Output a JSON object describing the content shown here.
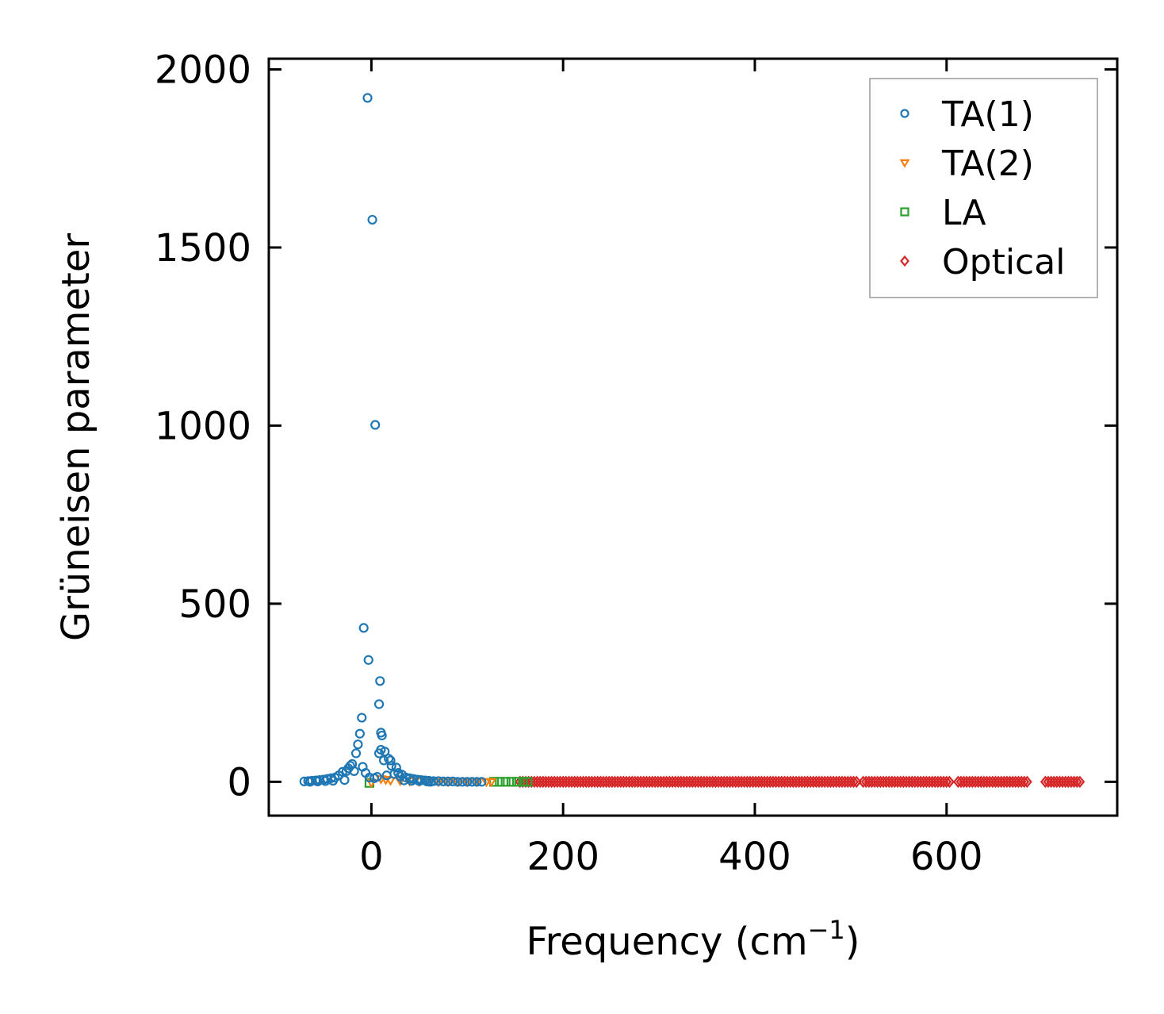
{
  "chart_data": {
    "type": "scatter",
    "xlabel": "Frequency (cm",
    "xlabel_sup": "−1",
    "xlabel_close": ")",
    "ylabel": "Grüneisen parameter",
    "xlim": [
      -107,
      778
    ],
    "ylim": [
      -95,
      2030
    ],
    "xticks": [
      0,
      200,
      400,
      600
    ],
    "yticks": [
      0,
      500,
      1000,
      1500,
      2000
    ],
    "grid": false,
    "legend_position": "top-right",
    "series": [
      {
        "name": "TA(1)",
        "marker": "circle",
        "color": "#1f77b4",
        "points": [
          [
            -4,
            1920
          ],
          [
            1,
            1578
          ],
          [
            4,
            1002
          ],
          [
            -8,
            432
          ],
          [
            -3,
            342
          ],
          [
            9,
            283
          ],
          [
            8,
            218
          ],
          [
            -10,
            180
          ],
          [
            -12,
            135
          ],
          [
            10,
            138
          ],
          [
            11,
            130
          ],
          [
            -14,
            105
          ],
          [
            10,
            90
          ],
          [
            14,
            85
          ],
          [
            -16,
            80
          ],
          [
            8,
            80
          ],
          [
            13,
            60
          ],
          [
            18,
            65
          ],
          [
            20,
            60
          ],
          [
            -20,
            50
          ],
          [
            -22,
            45
          ],
          [
            -24,
            38
          ],
          [
            21,
            45
          ],
          [
            26,
            40
          ],
          [
            -26,
            30
          ],
          [
            -30,
            28
          ],
          [
            28,
            25
          ],
          [
            32,
            20
          ],
          [
            -18,
            30
          ],
          [
            -9,
            42
          ],
          [
            -6,
            25
          ],
          [
            16,
            18
          ],
          [
            24,
            22
          ],
          [
            30,
            15
          ],
          [
            -34,
            18
          ],
          [
            -38,
            12
          ],
          [
            36,
            12
          ],
          [
            40,
            10
          ],
          [
            44,
            8
          ],
          [
            -42,
            10
          ],
          [
            -46,
            8
          ],
          [
            -50,
            6
          ],
          [
            48,
            6
          ],
          [
            52,
            5
          ],
          [
            -54,
            5
          ],
          [
            -58,
            4
          ],
          [
            -62,
            3
          ],
          [
            -66,
            2
          ],
          [
            -70,
            1
          ],
          [
            56,
            4
          ],
          [
            60,
            3
          ],
          [
            65,
            2
          ],
          [
            70,
            2
          ],
          [
            75,
            1
          ],
          [
            80,
            1
          ],
          [
            85,
            1
          ],
          [
            90,
            0
          ],
          [
            95,
            0
          ],
          [
            100,
            0
          ],
          [
            105,
            0
          ],
          [
            110,
            0
          ],
          [
            115,
            0
          ],
          [
            -2,
            12
          ],
          [
            3,
            10
          ],
          [
            6,
            14
          ],
          [
            -28,
            5
          ],
          [
            34,
            4
          ],
          [
            -40,
            3
          ],
          [
            42,
            3
          ],
          [
            -48,
            2
          ],
          [
            50,
            2
          ],
          [
            -56,
            1
          ],
          [
            58,
            1
          ],
          [
            -64,
            0
          ],
          [
            62,
            0
          ]
        ]
      },
      {
        "name": "TA(2)",
        "marker": "triangle-down",
        "color": "#ff7f0e",
        "points": [
          [
            0,
            -2
          ],
          [
            10,
            8
          ],
          [
            15,
            6
          ],
          [
            20,
            4
          ],
          [
            30,
            3
          ],
          [
            40,
            2
          ],
          [
            50,
            1
          ],
          [
            60,
            1
          ],
          [
            70,
            0
          ],
          [
            80,
            0
          ],
          [
            90,
            0
          ],
          [
            100,
            0
          ],
          [
            110,
            0
          ],
          [
            120,
            0
          ],
          [
            125,
            0
          ]
        ]
      },
      {
        "name": "LA",
        "marker": "square",
        "color": "#2ca02c",
        "points": [
          [
            -2,
            -3
          ],
          [
            128,
            0
          ],
          [
            134,
            0
          ],
          [
            140,
            0
          ],
          [
            146,
            0
          ],
          [
            152,
            0
          ],
          [
            158,
            0
          ],
          [
            163,
            0
          ]
        ]
      },
      {
        "name": "Optical",
        "marker": "diamond",
        "color": "#d62728",
        "segments": [
          [
            155,
            508
          ],
          [
            513,
            605
          ],
          [
            612,
            686
          ],
          [
            703,
            739
          ]
        ],
        "y": 0
      }
    ]
  }
}
